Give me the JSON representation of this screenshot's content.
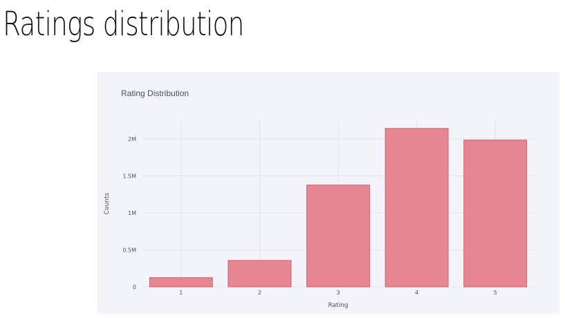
{
  "page": {
    "heading": "Ratings distribution"
  },
  "chart_data": {
    "type": "bar",
    "title": "Rating Distribution",
    "xlabel": "Rating",
    "ylabel": "Counts",
    "categories": [
      "1",
      "2",
      "3",
      "4",
      "5"
    ],
    "values": [
      125000,
      357000,
      1375000,
      2140000,
      1983000
    ],
    "ylim": [
      0,
      2250000
    ],
    "yticks": [
      0,
      500000,
      1000000,
      1500000,
      2000000
    ],
    "ytick_labels": [
      "0",
      "0.5M",
      "1M",
      "1.5M",
      "2M"
    ],
    "grid": true,
    "colors": {
      "bar_fill": "#e68692",
      "bar_stroke": "#d45f6e",
      "background": "#f3f4f9",
      "grid": "#e2e4ea"
    }
  }
}
